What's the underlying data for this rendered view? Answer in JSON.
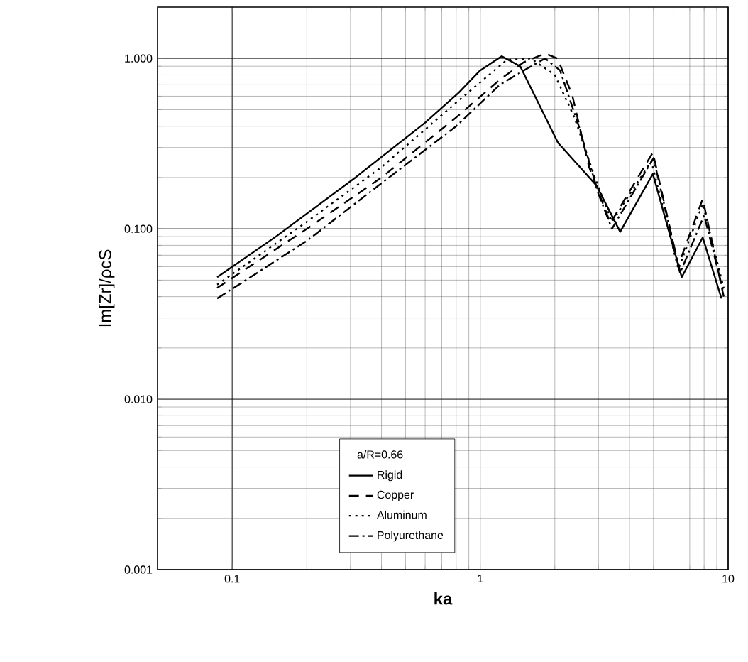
{
  "chart_data": {
    "type": "line",
    "xlabel": "ka",
    "ylabel": "Im[Zr]/ρcS",
    "legend_title": "a/R=0.66",
    "log": "xy",
    "grid": true,
    "legend": "bottom",
    "xlim": [
      0.05,
      10
    ],
    "ylim": [
      0.001,
      2
    ],
    "xticks": [
      0.1,
      1,
      10
    ],
    "yticks": [
      {
        "value": 0.001,
        "label": "0.001"
      },
      {
        "value": 0.01,
        "label": "0.010"
      },
      {
        "value": 0.1,
        "label": "0.100"
      },
      {
        "value": 1,
        "label": "1.000"
      }
    ],
    "series": [
      {
        "name": "Rigid",
        "color": "#000000",
        "line_style": "solid",
        "x": [
          0.087,
          0.15,
          0.314,
          0.6,
          0.82,
          1.0,
          1.22,
          1.45,
          2.06,
          2.94,
          3.67,
          4.97,
          6.5,
          7.9,
          9.4
        ],
        "values": [
          0.052,
          0.09,
          0.2,
          0.42,
          0.63,
          0.85,
          1.03,
          0.9,
          0.32,
          0.18,
          0.096,
          0.21,
          0.052,
          0.089,
          0.039
        ]
      },
      {
        "name": "Copper",
        "color": "#000000",
        "line_style": "dashed",
        "x": [
          0.087,
          0.2,
          0.4,
          0.8,
          1.2,
          1.5,
          1.83,
          2.05,
          2.35,
          2.75,
          3.35,
          4.97,
          6.3,
          7.9,
          9.6
        ],
        "values": [
          0.045,
          0.1,
          0.2,
          0.45,
          0.75,
          0.95,
          1.07,
          1.0,
          0.61,
          0.23,
          0.108,
          0.28,
          0.061,
          0.15,
          0.04
        ]
      },
      {
        "name": "Aluminum",
        "color": "#000000",
        "line_style": "dotted",
        "x": [
          0.087,
          0.2,
          0.4,
          0.8,
          1.28,
          1.6,
          2.0,
          2.4,
          2.9,
          3.4,
          4.9,
          6.3,
          7.9,
          9.6
        ],
        "values": [
          0.047,
          0.11,
          0.23,
          0.55,
          0.98,
          1.0,
          0.8,
          0.45,
          0.2,
          0.11,
          0.25,
          0.058,
          0.14,
          0.045
        ]
      },
      {
        "name": "Polyurethane",
        "color": "#000000",
        "line_style": "dashdot",
        "x": [
          0.087,
          0.2,
          0.39,
          0.8,
          1.2,
          1.5,
          1.83,
          2.1,
          2.5,
          3.0,
          3.4,
          5.0,
          6.4,
          8.0,
          9.6
        ],
        "values": [
          0.039,
          0.085,
          0.18,
          0.4,
          0.7,
          0.85,
          1.0,
          0.85,
          0.4,
          0.16,
          0.1,
          0.26,
          0.055,
          0.12,
          0.042
        ]
      }
    ]
  }
}
